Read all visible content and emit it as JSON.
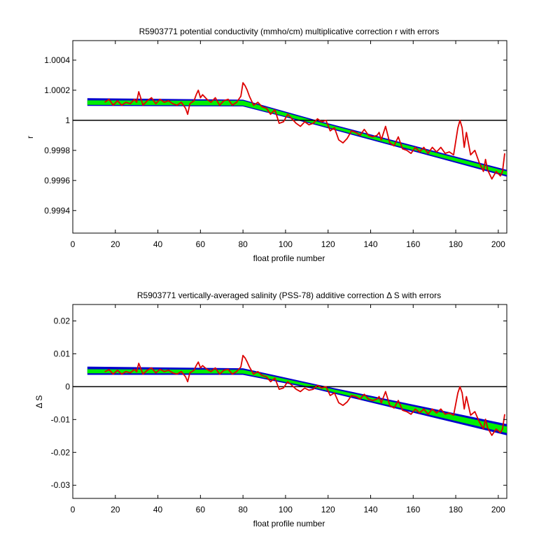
{
  "chart_data": [
    {
      "type": "line",
      "title": "R5903771 potential conductivity (mmho/cm) multiplicative correction r with errors",
      "xlabel": "float profile number",
      "ylabel": "r",
      "xlim": [
        0,
        204
      ],
      "ylim": [
        0.99925,
        1.00053
      ],
      "xticks": [
        0,
        20,
        40,
        60,
        80,
        100,
        120,
        140,
        160,
        180,
        200
      ],
      "yticks": [
        0.9994,
        0.9996,
        0.9998,
        1,
        1.0002,
        1.0004
      ],
      "ytick_labels": [
        "0.9994",
        "0.9996",
        "0.9998",
        "1",
        "1.0002",
        "1.0004"
      ],
      "reference_line": 1,
      "grid": false,
      "colors": {
        "error_band": "#0000cc",
        "fit": "#00ee00",
        "data": "#dd0000",
        "reference": "#000000"
      },
      "series": [
        {
          "role": "error-upper",
          "x": [
            7,
            80,
            115,
            204
          ],
          "y": [
            1.000145,
            1.000135,
            0.999996,
            0.999668
          ]
        },
        {
          "role": "error-lower",
          "x": [
            7,
            80,
            115,
            204
          ],
          "y": [
            1.000098,
            1.000095,
            0.999968,
            0.999628
          ]
        },
        {
          "role": "fit-upper",
          "x": [
            7,
            80,
            115,
            204
          ],
          "y": [
            1.00013,
            1.000128,
            0.999988,
            0.999658
          ]
        },
        {
          "role": "fit-lower",
          "x": [
            7,
            80,
            115,
            204
          ],
          "y": [
            1.000105,
            1.000101,
            0.999975,
            0.999638
          ]
        },
        {
          "role": "data",
          "x": [
            15,
            17,
            19,
            21,
            23,
            25,
            27,
            29,
            30,
            31,
            33,
            35,
            37,
            39,
            41,
            43,
            45,
            47,
            49,
            51,
            53,
            54,
            55,
            57,
            58,
            59,
            60,
            61,
            63,
            65,
            67,
            69,
            71,
            73,
            75,
            77,
            79,
            80,
            81,
            82,
            83,
            85,
            87,
            89,
            91,
            93,
            95,
            97,
            99,
            101,
            103,
            105,
            107,
            109,
            111,
            113,
            115,
            117,
            119,
            121,
            123,
            125,
            127,
            129,
            131,
            133,
            135,
            137,
            139,
            141,
            143,
            144,
            145,
            147,
            149,
            151,
            153,
            155,
            157,
            159,
            161,
            163,
            165,
            167,
            169,
            171,
            173,
            175,
            177,
            179,
            181,
            182,
            183,
            184,
            185,
            187,
            189,
            191,
            193,
            194,
            195,
            197,
            199,
            201,
            202,
            203
          ],
          "y": [
            1.00012,
            1.00014,
            1.0001,
            1.00013,
            1.0001,
            1.00012,
            1.00011,
            1.00014,
            1.00012,
            1.00019,
            1.0001,
            1.00013,
            1.00015,
            1.00011,
            1.00014,
            1.00012,
            1.00013,
            1.00011,
            1.0001,
            1.00012,
            1.00008,
            1.00004,
            1.00011,
            1.00013,
            1.00017,
            1.0002,
            1.00015,
            1.00017,
            1.00014,
            1.00012,
            1.00015,
            1.0001,
            1.00013,
            1.00014,
            1.0001,
            1.00012,
            1.00016,
            1.00025,
            1.00023,
            1.0002,
            1.00016,
            1.0001,
            1.00012,
            1.00009,
            1.00008,
            1.00004,
            1.00007,
            0.99998,
            0.99999,
            1.00004,
            1.00001,
            0.99998,
            0.99996,
            0.99999,
            0.99997,
            0.99998,
            1.00001,
            0.99999,
            1.0,
            0.99993,
            0.99995,
            0.99987,
            0.99985,
            0.99988,
            0.99993,
            0.99992,
            0.9999,
            0.99994,
            0.9999,
            0.99989,
            0.9999,
            0.99992,
            0.99987,
            0.99996,
            0.99985,
            0.99983,
            0.99989,
            0.99981,
            0.9998,
            0.99978,
            0.99982,
            0.99979,
            0.99982,
            0.99978,
            0.99982,
            0.99979,
            0.99982,
            0.99978,
            0.99979,
            0.99977,
            0.99995,
            1.0,
            0.99995,
            0.99982,
            0.99992,
            0.99977,
            0.9998,
            0.99972,
            0.99966,
            0.99974,
            0.99967,
            0.99961,
            0.99966,
            0.99963,
            0.99966,
            0.99978
          ]
        }
      ]
    },
    {
      "type": "line",
      "title": "R5903771 vertically-averaged salinity (PSS-78) additive correction Δ S with errors",
      "xlabel": "float profile number",
      "ylabel": "Δ S",
      "xlim": [
        0,
        204
      ],
      "ylim": [
        -0.034,
        0.025
      ],
      "xticks": [
        0,
        20,
        40,
        60,
        80,
        100,
        120,
        140,
        160,
        180,
        200
      ],
      "yticks": [
        -0.03,
        -0.02,
        -0.01,
        0,
        0.01,
        0.02
      ],
      "ytick_labels": [
        "-0.03",
        "-0.02",
        "-0.01",
        "0",
        "0.01",
        "0.02"
      ],
      "reference_line": 0,
      "grid": false,
      "colors": {
        "error_band": "#0000cc",
        "fit": "#00ee00",
        "data": "#dd0000",
        "reference": "#000000"
      },
      "series": [
        {
          "role": "error-upper",
          "x": [
            7,
            80,
            115,
            204
          ],
          "y": [
            0.006,
            0.0055,
            0.0005,
            -0.0115
          ]
        },
        {
          "role": "error-lower",
          "x": [
            7,
            80,
            115,
            204
          ],
          "y": [
            0.0037,
            0.0037,
            -0.0008,
            -0.0147
          ]
        },
        {
          "role": "fit-upper",
          "x": [
            7,
            80,
            115,
            204
          ],
          "y": [
            0.0052,
            0.005,
            0.0001,
            -0.0122
          ]
        },
        {
          "role": "fit-lower",
          "x": [
            7,
            80,
            115,
            204
          ],
          "y": [
            0.0042,
            0.0041,
            -0.0004,
            -0.014
          ]
        },
        {
          "role": "data",
          "x": [
            15,
            17,
            19,
            21,
            23,
            25,
            27,
            29,
            30,
            31,
            33,
            35,
            37,
            39,
            41,
            43,
            45,
            47,
            49,
            51,
            53,
            54,
            55,
            57,
            58,
            59,
            60,
            61,
            63,
            65,
            67,
            69,
            71,
            73,
            75,
            77,
            79,
            80,
            81,
            82,
            83,
            85,
            87,
            89,
            91,
            93,
            95,
            97,
            99,
            101,
            103,
            105,
            107,
            109,
            111,
            113,
            115,
            117,
            119,
            121,
            123,
            125,
            127,
            129,
            131,
            133,
            135,
            137,
            139,
            141,
            143,
            144,
            145,
            147,
            149,
            151,
            153,
            155,
            157,
            159,
            161,
            163,
            165,
            167,
            169,
            171,
            173,
            175,
            177,
            179,
            181,
            182,
            183,
            184,
            185,
            187,
            189,
            191,
            193,
            194,
            195,
            197,
            199,
            201,
            202,
            203
          ],
          "y": [
            0.0045,
            0.0052,
            0.0038,
            0.005,
            0.0038,
            0.0046,
            0.0042,
            0.0053,
            0.0045,
            0.0071,
            0.0038,
            0.005,
            0.0057,
            0.0042,
            0.0053,
            0.0046,
            0.005,
            0.0042,
            0.0038,
            0.0046,
            0.003,
            0.0015,
            0.0042,
            0.005,
            0.0064,
            0.0075,
            0.0057,
            0.0064,
            0.0053,
            0.0046,
            0.0057,
            0.0038,
            0.005,
            0.0053,
            0.0038,
            0.0046,
            0.006,
            0.0095,
            0.0087,
            0.0075,
            0.006,
            0.0038,
            0.0046,
            0.0034,
            0.003,
            0.0015,
            0.0026,
            -0.0008,
            -0.0004,
            0.0015,
            0.0004,
            -0.0008,
            -0.0015,
            -0.0004,
            -0.0011,
            -0.0008,
            0.0004,
            -0.0004,
            0.0,
            -0.0027,
            -0.0019,
            -0.0049,
            -0.0057,
            -0.0046,
            -0.0027,
            -0.003,
            -0.0038,
            -0.0023,
            -0.0038,
            -0.0042,
            -0.0038,
            -0.003,
            -0.0049,
            -0.0015,
            -0.0057,
            -0.0065,
            -0.0042,
            -0.0072,
            -0.0076,
            -0.0084,
            -0.0068,
            -0.008,
            -0.0068,
            -0.0084,
            -0.0068,
            -0.008,
            -0.0068,
            -0.0084,
            -0.008,
            -0.0087,
            -0.0019,
            0.0,
            -0.0019,
            -0.0068,
            -0.003,
            -0.0087,
            -0.0076,
            -0.0106,
            -0.0129,
            -0.0099,
            -0.0125,
            -0.0148,
            -0.0129,
            -0.014,
            -0.0129,
            -0.0084
          ]
        }
      ]
    }
  ]
}
